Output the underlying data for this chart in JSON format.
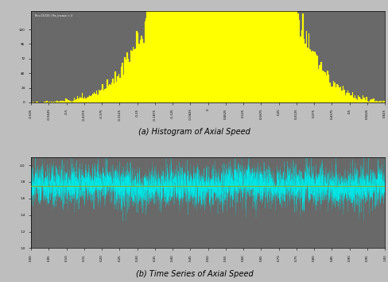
{
  "hist_label_a": "(a) Histogram of Axial Speed",
  "ts_label_b": "(b) Time Series of Axial Speed",
  "background_color": "#696969",
  "fig_background": "#bebebe",
  "hist_color": "#ffff00",
  "ts_color": "#00e5e5",
  "ts_mean_color": "#aaaa00",
  "hist_xlim": [
    -0.625,
    0.625
  ],
  "hist_ylim": [
    0,
    150
  ],
  "hist_yticks": [
    0,
    24,
    48,
    72,
    96,
    120
  ],
  "ts_xlim": [
    0.0,
    1.0
  ],
  "ts_ylim": [
    1.0,
    2.1
  ],
  "ts_yticks": [
    1.0,
    1.2,
    1.4,
    1.6,
    1.8,
    2.0
  ],
  "ts_mean": 1.75,
  "ts_n_points": 5000,
  "ts_noise_scale": 0.12,
  "hist_n_points": 50000,
  "hist_mean": 0.05,
  "hist_std": 0.17,
  "hist_bins": 300,
  "annotation_text": "Re=15725 | Re_incase = 3",
  "xtick_count_hist": 21,
  "xtick_count_ts": 21
}
